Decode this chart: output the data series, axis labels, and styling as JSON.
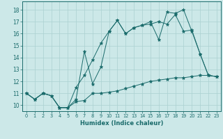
{
  "xlabel": "Humidex (Indice chaleur)",
  "bg_color": "#cce8e8",
  "line_color": "#1a6b6b",
  "grid_color": "#aad0d0",
  "xlim": [
    -0.5,
    23.5
  ],
  "ylim": [
    9.5,
    18.7
  ],
  "xticks": [
    0,
    1,
    2,
    3,
    4,
    5,
    6,
    7,
    8,
    9,
    10,
    11,
    12,
    13,
    14,
    15,
    16,
    17,
    18,
    19,
    20,
    21,
    22,
    23
  ],
  "yticks": [
    10,
    11,
    12,
    13,
    14,
    15,
    16,
    17,
    18
  ],
  "line1_x": [
    0,
    1,
    2,
    3,
    4,
    5,
    6,
    7,
    8,
    9,
    10,
    11,
    12,
    13,
    14,
    15,
    16,
    17,
    18,
    19,
    20,
    21,
    22,
    23
  ],
  "line1_y": [
    11.0,
    10.5,
    11.0,
    10.8,
    9.8,
    9.8,
    10.3,
    10.4,
    11.0,
    11.0,
    11.1,
    11.2,
    11.4,
    11.6,
    11.8,
    12.0,
    12.1,
    12.2,
    12.3,
    12.3,
    12.4,
    12.5,
    12.5,
    12.4
  ],
  "line2_x": [
    0,
    1,
    2,
    3,
    4,
    5,
    6,
    7,
    8,
    9,
    10,
    11,
    12,
    13,
    14,
    15,
    16,
    17,
    18,
    19,
    20,
    21,
    22,
    23
  ],
  "line2_y": [
    11.0,
    10.5,
    11.0,
    10.8,
    9.8,
    9.8,
    10.5,
    14.5,
    11.8,
    13.2,
    16.2,
    17.1,
    16.0,
    16.5,
    16.7,
    16.8,
    17.0,
    16.8,
    17.6,
    16.2,
    16.3,
    14.3,
    12.5,
    12.4
  ],
  "line3_x": [
    0,
    1,
    2,
    3,
    4,
    5,
    6,
    7,
    8,
    9,
    10,
    11,
    12,
    13,
    14,
    15,
    16,
    17,
    18,
    19,
    20,
    21,
    22,
    23
  ],
  "line3_y": [
    11.0,
    10.5,
    11.0,
    10.8,
    9.8,
    9.8,
    11.5,
    12.5,
    13.8,
    15.2,
    16.2,
    17.1,
    16.0,
    16.5,
    16.7,
    17.0,
    15.5,
    17.8,
    17.7,
    18.0,
    16.2,
    14.3,
    12.5,
    12.4
  ]
}
